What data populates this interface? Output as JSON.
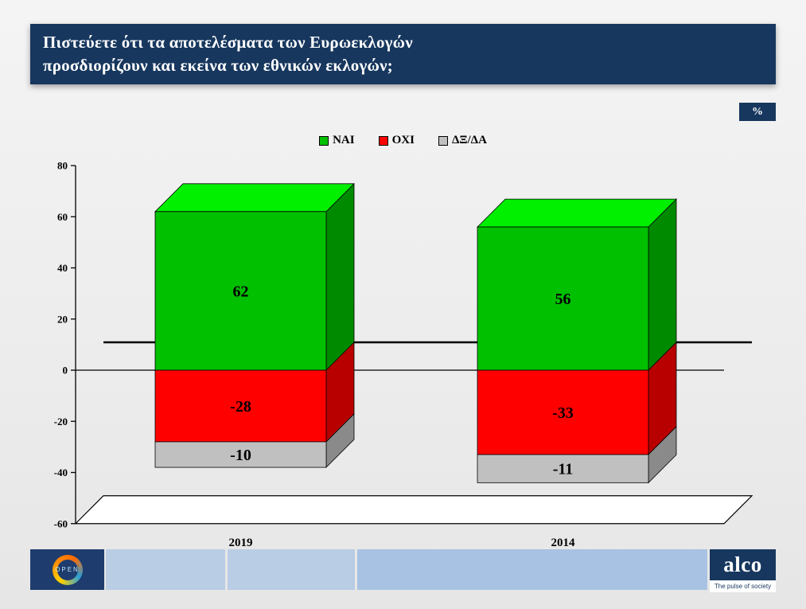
{
  "banner": {
    "title_line1": "Πιστεύετε ότι τα αποτελέσματα των Ευρωεκλογών",
    "title_line2": "προσδιορίζουν και εκείνα των εθνικών εκλογών;"
  },
  "percent_badge": "%",
  "chart_data": {
    "type": "bar",
    "subtype": "3d-stacked-column",
    "title": "",
    "categories": [
      "2019",
      "2014"
    ],
    "series": [
      {
        "name": "ΝΑΙ",
        "color": "#00c000",
        "values": [
          62,
          56
        ]
      },
      {
        "name": "ΟΧΙ",
        "color": "#ff0000",
        "values": [
          -28,
          -33
        ]
      },
      {
        "name": "ΔΞ/ΔΑ",
        "color": "#c0c0c0",
        "values": [
          -10,
          -11
        ]
      }
    ],
    "data_labels": [
      [
        "62",
        "-28",
        "-10"
      ],
      [
        "56",
        "-33",
        "-11"
      ]
    ],
    "ylim": [
      -60,
      80
    ],
    "yticks": [
      80,
      60,
      40,
      20,
      0,
      -20,
      -40,
      -60
    ],
    "legend_position": "top",
    "grid": "zero-line-only",
    "labels_shown": true
  },
  "footer": {
    "open_label": "OPEN",
    "alco_label": "alco",
    "alco_tagline": "The pulse of society"
  }
}
